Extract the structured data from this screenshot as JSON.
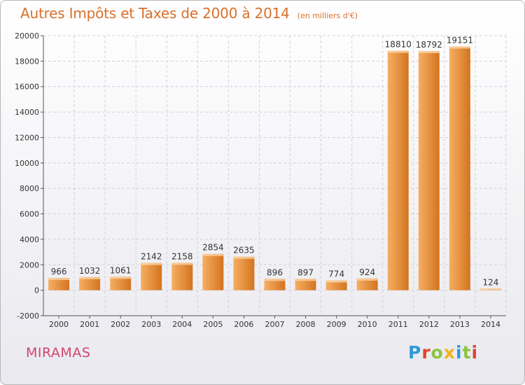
{
  "header": {
    "title": "Autres Impôts et Taxes de 2000 à 2014",
    "subtitle": "(en milliers d'€)"
  },
  "footer": {
    "place": "MIRAMAS",
    "logo_text": "Proxiti"
  },
  "colors": {
    "bar_light": "#f6ae62",
    "bar_dark": "#d3741f",
    "title": "#d9702a",
    "place": "#d2456e",
    "grid": "#d2d2d8",
    "axis": "#555555"
  },
  "chart_data": {
    "type": "bar",
    "title": "Autres Impôts et Taxes de 2000 à 2014",
    "subtitle": "(en milliers d'€)",
    "xlabel": "",
    "ylabel": "",
    "categories": [
      "2000",
      "2001",
      "2002",
      "2003",
      "2004",
      "2005",
      "2006",
      "2007",
      "2008",
      "2009",
      "2010",
      "2011",
      "2012",
      "2013",
      "2014"
    ],
    "values": [
      966,
      1032,
      1061,
      2142,
      2158,
      2854,
      2635,
      896,
      897,
      774,
      924,
      18810,
      18792,
      19151,
      124
    ],
    "data_labels": [
      "966",
      "1032",
      "1061",
      "2142",
      "2158",
      "2854",
      "2635",
      "896",
      "897",
      "774",
      "924",
      "18810",
      "18792",
      "19151",
      "124"
    ],
    "ylim": [
      -2000,
      20000
    ],
    "yticks": [
      -2000,
      0,
      2000,
      4000,
      6000,
      8000,
      10000,
      12000,
      14000,
      16000,
      18000,
      20000
    ],
    "ytick_labels": [
      "-2000",
      "0",
      "2000",
      "4000",
      "6000",
      "8000",
      "10000",
      "12000",
      "14000",
      "16000",
      "18000",
      "20000"
    ],
    "grid": true,
    "legend": "none"
  }
}
